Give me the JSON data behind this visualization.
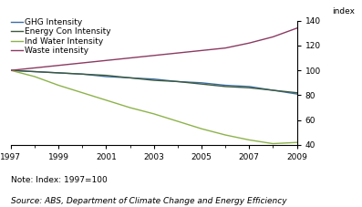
{
  "ylabel_right": "index",
  "note": "Note: Index: 1997=100",
  "source": "Source: ABS, Department of Climate Change and Energy Efficiency",
  "years": [
    1997,
    1998,
    1999,
    2000,
    2001,
    2002,
    2003,
    2004,
    2005,
    2006,
    2007,
    2008,
    2009
  ],
  "series": {
    "GHG Intensity": {
      "color": "#3a6ea5",
      "values": [
        100,
        99,
        98,
        97,
        95,
        94,
        93,
        91,
        90,
        88,
        87,
        84,
        81
      ]
    },
    "Energy Con Intensity": {
      "color": "#3d5a3e",
      "values": [
        100,
        99,
        98,
        97,
        96,
        94,
        92,
        91,
        89,
        87,
        86,
        84,
        82
      ]
    },
    "Ind Water Intensity": {
      "color": "#8db34a",
      "values": [
        100,
        95,
        88,
        82,
        76,
        70,
        65,
        59,
        53,
        48,
        44,
        41,
        42
      ]
    },
    "Waste intensity": {
      "color": "#8b3a62",
      "values": [
        100,
        102,
        104,
        106,
        108,
        110,
        112,
        114,
        116,
        118,
        122,
        127,
        134
      ]
    }
  },
  "xlim": [
    1997,
    2009
  ],
  "ylim": [
    40,
    140
  ],
  "yticks": [
    40,
    60,
    80,
    100,
    120,
    140
  ],
  "xticks": [
    1997,
    1999,
    2001,
    2003,
    2005,
    2007,
    2009
  ],
  "background_color": "#ffffff",
  "legend_fontsize": 6.5,
  "tick_fontsize": 6.5,
  "note_fontsize": 6.5,
  "source_fontsize": 6.5
}
